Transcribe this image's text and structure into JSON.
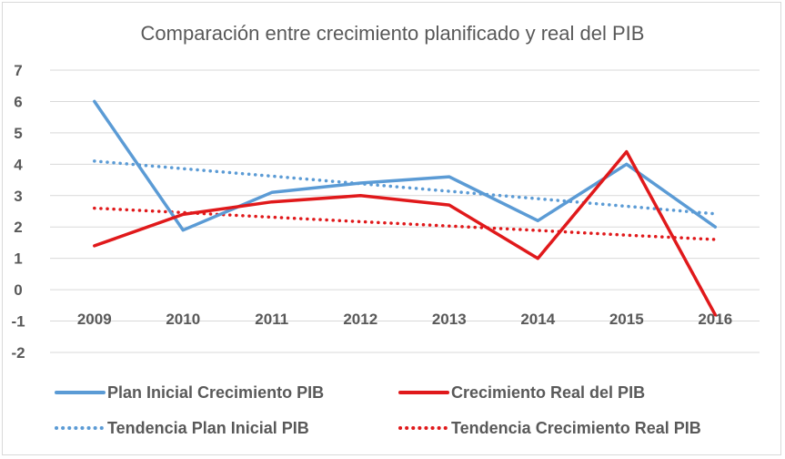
{
  "chart_data": {
    "type": "line",
    "title": "Comparación entre crecimiento planificado y real del PIB",
    "xlabel": "",
    "ylabel": "",
    "ylim": [
      -2,
      7
    ],
    "yticks": [
      "-2",
      "-1",
      "0",
      "1",
      "2",
      "3",
      "4",
      "5",
      "6",
      "7"
    ],
    "categories": [
      "2009",
      "2010",
      "2011",
      "2012",
      "2013",
      "2014",
      "2015",
      "2016"
    ],
    "grid": true,
    "legend_position": "bottom",
    "series": [
      {
        "name": "Plan Inicial Crecimiento PIB",
        "color": "#5b9bd5",
        "style": "solid",
        "values": [
          6.0,
          1.9,
          3.1,
          3.4,
          3.6,
          2.2,
          4.0,
          2.0
        ]
      },
      {
        "name": "Crecimiento Real del PIB",
        "color": "#e0191b",
        "style": "solid",
        "values": [
          1.4,
          2.4,
          2.8,
          3.0,
          2.7,
          1.0,
          4.4,
          -0.8
        ]
      },
      {
        "name": "Tendencia Plan Inicial PIB",
        "color": "#5b9bd5",
        "style": "dotted",
        "values": [
          4.1,
          3.86,
          3.62,
          3.38,
          3.14,
          2.9,
          2.66,
          2.42
        ]
      },
      {
        "name": "Tendencia Crecimiento Real PIB",
        "color": "#e0191b",
        "style": "dotted",
        "values": [
          2.6,
          2.46,
          2.31,
          2.17,
          2.03,
          1.89,
          1.74,
          1.6
        ]
      }
    ]
  }
}
